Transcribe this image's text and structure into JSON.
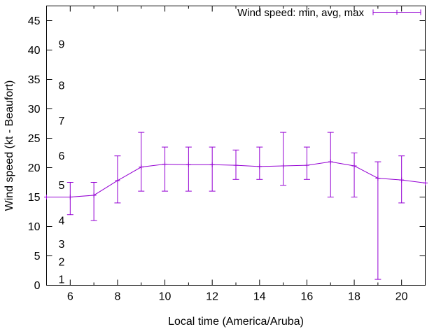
{
  "accent_color": "#9400d3",
  "chart_data": {
    "type": "line",
    "title": "",
    "xlabel": "Local time (America/Aruba)",
    "ylabel": "Wind speed (kt - Beaufort)",
    "legend": {
      "label": "Wind speed: min, avg, max",
      "position": "top-right"
    },
    "xlim": [
      5,
      21
    ],
    "ylim": [
      0,
      47.5
    ],
    "x_ticks": [
      6,
      8,
      10,
      12,
      14,
      16,
      18,
      20
    ],
    "x_minor_step": 1,
    "y_ticks": [
      0,
      5,
      10,
      15,
      20,
      25,
      30,
      35,
      40,
      45
    ],
    "grid": false,
    "line_color": "#9400d3",
    "x": [
      5,
      6,
      7,
      8,
      9,
      10,
      11,
      12,
      13,
      14,
      15,
      16,
      17,
      18,
      19,
      20,
      21
    ],
    "series": [
      {
        "name": "avg",
        "values": [
          15.0,
          15.0,
          15.3,
          17.8,
          20.1,
          20.6,
          20.5,
          20.5,
          20.4,
          20.2,
          20.3,
          20.4,
          21.0,
          20.3,
          18.2,
          17.9,
          17.4
        ]
      },
      {
        "name": "min",
        "values": [
          null,
          12,
          11,
          14,
          16,
          16,
          16,
          16,
          18,
          18,
          17,
          18,
          15,
          15,
          1,
          14,
          null
        ]
      },
      {
        "name": "max",
        "values": [
          null,
          17.5,
          17.5,
          22,
          26,
          23.5,
          23.5,
          23.5,
          23,
          23.5,
          26,
          23.5,
          26,
          22.5,
          21,
          22,
          null
        ]
      }
    ],
    "beaufort_scale_labels": [
      {
        "beaufort": "1",
        "kt": 1
      },
      {
        "beaufort": "2",
        "kt": 4
      },
      {
        "beaufort": "3",
        "kt": 7
      },
      {
        "beaufort": "4",
        "kt": 11
      },
      {
        "beaufort": "5",
        "kt": 17
      },
      {
        "beaufort": "6",
        "kt": 22
      },
      {
        "beaufort": "7",
        "kt": 28
      },
      {
        "beaufort": "8",
        "kt": 34
      },
      {
        "beaufort": "9",
        "kt": 41
      }
    ]
  }
}
